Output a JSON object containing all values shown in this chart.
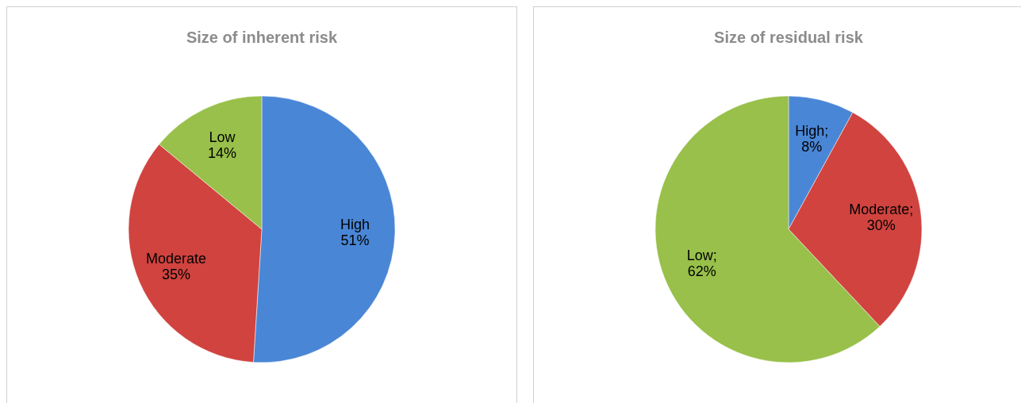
{
  "chart_data": [
    {
      "type": "pie",
      "title": "Size of inherent risk",
      "categories": [
        "High",
        "Moderate",
        "Low"
      ],
      "values": [
        51,
        35,
        14
      ],
      "colors": [
        "#4a86d6",
        "#d0433f",
        "#98c04a"
      ],
      "value_labels": [
        "\n51%",
        "\n35%",
        "\n14%"
      ]
    },
    {
      "type": "pie",
      "title": "Size of residual risk",
      "categories": [
        "High",
        "Moderate",
        "Low"
      ],
      "values": [
        8,
        30,
        62
      ],
      "colors": [
        "#4a86d6",
        "#d0433f",
        "#98c04a"
      ],
      "value_labels": [
        ";\n8%",
        ";\n30%",
        ";\n62%"
      ]
    }
  ]
}
